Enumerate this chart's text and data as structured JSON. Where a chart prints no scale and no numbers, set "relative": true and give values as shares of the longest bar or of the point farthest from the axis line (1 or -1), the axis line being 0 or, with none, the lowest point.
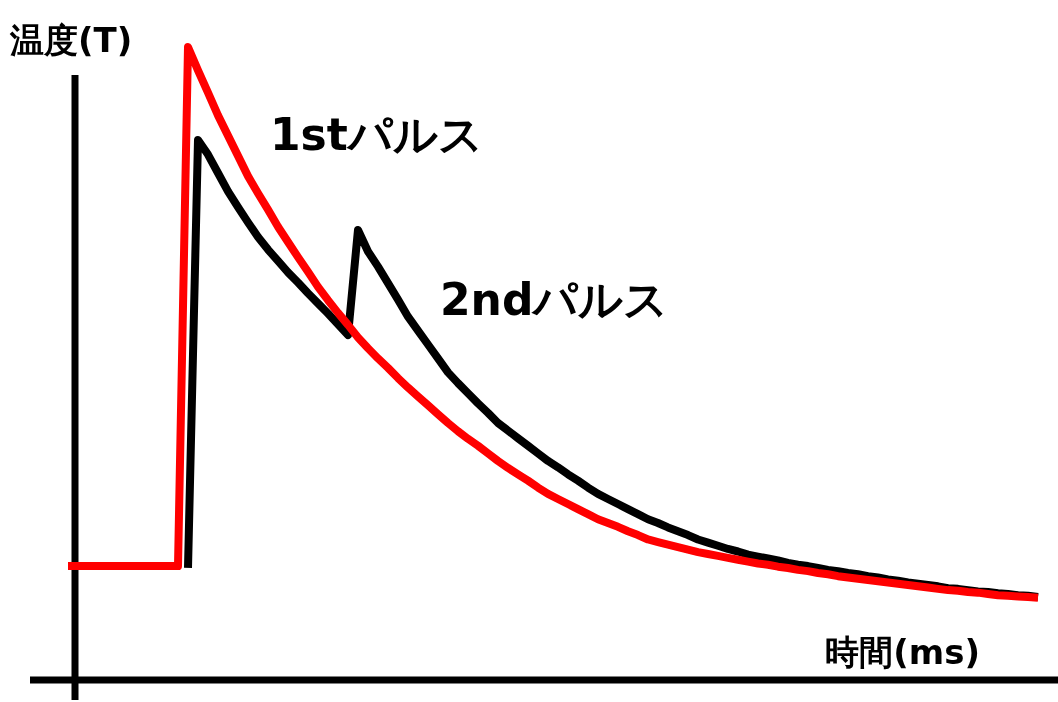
{
  "chart_data": {
    "type": "line",
    "relative": true,
    "ylabel": "温度(T)",
    "xlabel": "時間(ms)",
    "annotations": [
      "1stパルス",
      "2ndパルス"
    ],
    "categories": [
      null,
      null,
      null,
      null,
      null,
      null,
      null,
      null,
      null,
      null,
      null,
      null,
      null,
      null,
      null,
      null,
      null,
      null,
      null,
      null,
      null,
      null,
      null,
      null,
      null,
      null,
      null,
      null,
      null,
      null,
      null,
      null,
      null,
      null,
      null,
      null,
      null,
      null,
      null,
      null,
      null,
      null,
      null,
      null,
      null,
      null,
      null,
      null,
      null,
      null,
      null,
      null,
      null,
      null,
      null,
      null,
      null,
      null,
      null,
      null,
      null,
      null,
      null,
      null,
      null,
      null,
      null,
      null,
      null,
      null,
      null,
      null,
      null,
      null,
      null,
      null,
      null,
      null,
      null,
      null,
      null,
      null,
      null,
      null,
      null,
      null,
      null,
      null,
      null,
      null,
      null,
      null,
      null,
      null,
      null,
      null,
      null,
      null
    ],
    "series": [
      {
        "color": "#ff0000",
        "values": [
          0.18,
          0.18,
          0.18,
          0.18,
          0.18,
          0.18,
          0.18,
          0.18,
          0.18,
          0.18,
          0.18,
          0.18,
          1.0,
          0.963,
          0.928,
          0.892,
          0.86,
          0.828,
          0.796,
          0.769,
          0.743,
          0.716,
          0.692,
          0.668,
          0.645,
          0.621,
          0.6,
          0.58,
          0.561,
          0.541,
          0.524,
          0.508,
          0.493,
          0.477,
          0.462,
          0.448,
          0.434,
          0.42,
          0.406,
          0.393,
          0.381,
          0.37,
          0.358,
          0.346,
          0.335,
          0.325,
          0.315,
          0.304,
          0.294,
          0.286,
          0.278,
          0.27,
          0.262,
          0.254,
          0.248,
          0.242,
          0.235,
          0.229,
          0.222,
          0.218,
          0.214,
          0.21,
          0.206,
          0.202,
          0.199,
          0.196,
          0.193,
          0.19,
          0.187,
          0.184,
          0.182,
          0.179,
          0.177,
          0.174,
          0.172,
          0.169,
          0.167,
          0.164,
          0.162,
          0.16,
          0.158,
          0.156,
          0.154,
          0.152,
          0.15,
          0.148,
          0.146,
          0.144,
          0.142,
          0.141,
          0.139,
          0.138,
          0.136,
          0.134,
          0.133,
          0.132,
          0.131,
          0.13
        ]
      },
      {
        "color": "#000000",
        "values": [
          null,
          null,
          null,
          null,
          null,
          null,
          null,
          null,
          null,
          null,
          null,
          null,
          0.177,
          0.853,
          0.83,
          0.801,
          0.772,
          0.747,
          0.723,
          0.7,
          0.68,
          0.662,
          0.644,
          0.628,
          0.611,
          0.595,
          0.579,
          0.562,
          0.545,
          0.711,
          0.677,
          0.653,
          0.627,
          0.601,
          0.574,
          0.552,
          0.53,
          0.508,
          0.486,
          0.469,
          0.453,
          0.437,
          0.422,
          0.406,
          0.394,
          0.382,
          0.37,
          0.358,
          0.346,
          0.336,
          0.325,
          0.315,
          0.304,
          0.294,
          0.286,
          0.278,
          0.27,
          0.262,
          0.254,
          0.248,
          0.241,
          0.235,
          0.229,
          0.222,
          0.217,
          0.212,
          0.207,
          0.203,
          0.198,
          0.195,
          0.192,
          0.189,
          0.185,
          0.182,
          0.18,
          0.177,
          0.174,
          0.172,
          0.169,
          0.167,
          0.164,
          0.162,
          0.159,
          0.157,
          0.154,
          0.152,
          0.15,
          0.148,
          0.145,
          0.144,
          0.142,
          0.14,
          0.139,
          0.137,
          0.136,
          0.134,
          0.133,
          0.131
        ]
      }
    ]
  }
}
